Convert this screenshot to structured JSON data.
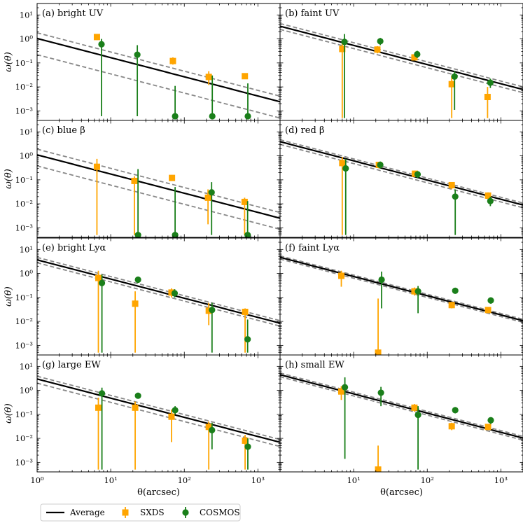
{
  "chart_data": {
    "type": "scatter",
    "x_scale": "log",
    "y_scale": "log",
    "xlim": [
      1,
      2000
    ],
    "ylim": [
      0.0004,
      30
    ],
    "xlabel": "θ(arcsec)",
    "ylabel": "ω(θ)",
    "x_ticks": [
      {
        "value": 1,
        "label": "10⁰"
      },
      {
        "value": 10,
        "label": "10¹"
      },
      {
        "value": 100,
        "label": "10²"
      },
      {
        "value": 1000,
        "label": "10³"
      }
    ],
    "y_ticks": [
      {
        "value": 0.001,
        "label": "10⁻³"
      },
      {
        "value": 0.01,
        "label": "10⁻²"
      },
      {
        "value": 0.1,
        "label": "10⁻¹"
      },
      {
        "value": 1,
        "label": "10⁰"
      },
      {
        "value": 10,
        "label": "10¹"
      }
    ],
    "legend": {
      "placement": "bottom",
      "entries": [
        {
          "key": "average",
          "label": "Average"
        },
        {
          "key": "sxds",
          "label": "SXDS"
        },
        {
          "key": "cosmos",
          "label": "COSMOS"
        }
      ]
    },
    "colors": {
      "average": "#000000",
      "bounds": "#888888",
      "sxds": "#FFA500",
      "cosmos": "#1A7F1A"
    },
    "panels": [
      {
        "title": "(a) bright UV",
        "average": {
          "amplitude": 1.05,
          "slope": 0.8
        },
        "bounds": [
          {
            "amplitude": 1.8,
            "slope": 0.8
          },
          {
            "amplitude": 0.22,
            "slope": 0.8
          }
        ],
        "sxds": [
          {
            "x": 6.5,
            "y": 1.2,
            "lo": 0.9,
            "hi": 1.6
          },
          {
            "x": 70,
            "y": 0.12,
            "lo": 0.085,
            "hi": 0.17
          },
          {
            "x": 215,
            "y": 0.026,
            "lo": 0.012,
            "hi": 0.045
          },
          {
            "x": 665,
            "y": 0.028,
            "lo": 0.022,
            "hi": 0.035
          }
        ],
        "cosmos": [
          {
            "x": 7.5,
            "y": 0.6,
            "lo": 0.0006,
            "hi": 1.0
          },
          {
            "x": 23,
            "y": 0.22,
            "lo": 0.0006,
            "hi": 0.55
          },
          {
            "x": 75,
            "y": 0.0006,
            "lo": 0.0006,
            "hi": 0.011
          },
          {
            "x": 240,
            "y": 0.0006,
            "lo": 0.0006,
            "hi": 0.03
          },
          {
            "x": 730,
            "y": 0.0006,
            "lo": 0.0006,
            "hi": 0.014
          }
        ]
      },
      {
        "title": "(b) faint UV",
        "average": {
          "amplitude": 3.4,
          "slope": 0.8
        },
        "bounds": [
          {
            "amplitude": 4.4,
            "slope": 0.8
          },
          {
            "amplitude": 2.5,
            "slope": 0.8
          }
        ],
        "sxds": [
          {
            "x": 7,
            "y": 0.38,
            "lo": 0.0005,
            "hi": 0.75
          },
          {
            "x": 21,
            "y": 0.36,
            "lo": 0.25,
            "hi": 0.5
          },
          {
            "x": 67,
            "y": 0.17,
            "lo": 0.13,
            "hi": 0.22
          },
          {
            "x": 215,
            "y": 0.013,
            "lo": 0.0005,
            "hi": 0.03
          },
          {
            "x": 660,
            "y": 0.0038,
            "lo": 0.0005,
            "hi": 0.01
          }
        ],
        "cosmos": [
          {
            "x": 7.5,
            "y": 0.75,
            "lo": 0.0005,
            "hi": 1.6
          },
          {
            "x": 23,
            "y": 0.8,
            "lo": 0.55,
            "hi": 1.1
          },
          {
            "x": 73,
            "y": 0.23,
            "lo": 0.16,
            "hi": 0.32
          },
          {
            "x": 235,
            "y": 0.027,
            "lo": 0.0011,
            "hi": 0.045
          },
          {
            "x": 720,
            "y": 0.015,
            "lo": 0.009,
            "hi": 0.022
          }
        ]
      },
      {
        "title": "(c) blue β",
        "average": {
          "amplitude": 1.1,
          "slope": 0.8
        },
        "bounds": [
          {
            "amplitude": 1.9,
            "slope": 0.8
          },
          {
            "amplitude": 0.38,
            "slope": 0.8
          }
        ],
        "sxds": [
          {
            "x": 6.5,
            "y": 0.35,
            "lo": 0.0005,
            "hi": 0.75
          },
          {
            "x": 21,
            "y": 0.09,
            "lo": 0.0005,
            "hi": 0.14
          },
          {
            "x": 68,
            "y": 0.12,
            "lo": 0.09,
            "hi": 0.16
          },
          {
            "x": 210,
            "y": 0.018,
            "lo": 0.0014,
            "hi": 0.04
          },
          {
            "x": 660,
            "y": 0.012,
            "lo": 0.0005,
            "hi": 0.018
          }
        ],
        "cosmos": [
          {
            "x": 23.5,
            "y": 0.0005,
            "lo": 0.0005,
            "hi": 0.28
          },
          {
            "x": 75,
            "y": 0.0005,
            "lo": 0.0005,
            "hi": 0.05
          },
          {
            "x": 235,
            "y": 0.03,
            "lo": 0.0005,
            "hi": 0.08
          },
          {
            "x": 725,
            "y": 0.0005,
            "lo": 0.0005,
            "hi": 0.013
          }
        ]
      },
      {
        "title": "(d) red β",
        "average": {
          "amplitude": 3.9,
          "slope": 0.8
        },
        "bounds": [
          {
            "amplitude": 4.7,
            "slope": 0.8
          },
          {
            "amplitude": 3.0,
            "slope": 0.8
          }
        ],
        "sxds": [
          {
            "x": 7,
            "y": 0.5,
            "lo": 0.0005,
            "hi": 0.9
          },
          {
            "x": 22,
            "y": 0.42,
            "lo": 0.3,
            "hi": 0.55
          },
          {
            "x": 68,
            "y": 0.18,
            "lo": 0.13,
            "hi": 0.24
          },
          {
            "x": 215,
            "y": 0.06,
            "lo": 0.04,
            "hi": 0.08
          },
          {
            "x": 670,
            "y": 0.022,
            "lo": 0.016,
            "hi": 0.03
          }
        ],
        "cosmos": [
          {
            "x": 7.8,
            "y": 0.3,
            "lo": 0.0005,
            "hi": 0.75
          },
          {
            "x": 23,
            "y": 0.42,
            "lo": 0.3,
            "hi": 0.58
          },
          {
            "x": 74,
            "y": 0.17,
            "lo": 0.12,
            "hi": 0.23
          },
          {
            "x": 240,
            "y": 0.02,
            "lo": 0.0005,
            "hi": 0.04
          },
          {
            "x": 720,
            "y": 0.013,
            "lo": 0.008,
            "hi": 0.02
          }
        ]
      },
      {
        "title": "(e) bright Lyα",
        "average": {
          "amplitude": 3.7,
          "slope": 0.8
        },
        "bounds": [
          {
            "amplitude": 4.7,
            "slope": 0.8
          },
          {
            "amplitude": 2.8,
            "slope": 0.8
          }
        ],
        "sxds": [
          {
            "x": 6.8,
            "y": 0.65,
            "lo": 0.0005,
            "hi": 1.3
          },
          {
            "x": 21.5,
            "y": 0.055,
            "lo": 0.0005,
            "hi": 0.18
          },
          {
            "x": 67,
            "y": 0.16,
            "lo": 0.1,
            "hi": 0.24
          },
          {
            "x": 215,
            "y": 0.028,
            "lo": 0.007,
            "hi": 0.06
          },
          {
            "x": 670,
            "y": 0.025,
            "lo": 0.0005,
            "hi": 0.035
          }
        ],
        "cosmos": [
          {
            "x": 7.6,
            "y": 0.4,
            "lo": 0.0005,
            "hi": 0.9
          },
          {
            "x": 23.5,
            "y": 0.55,
            "lo": 0.42,
            "hi": 0.7
          },
          {
            "x": 74,
            "y": 0.15,
            "lo": 0.1,
            "hi": 0.22
          },
          {
            "x": 238,
            "y": 0.03,
            "lo": 0.0005,
            "hi": 0.06
          },
          {
            "x": 725,
            "y": 0.0018,
            "lo": 0.0005,
            "hi": 0.012
          }
        ]
      },
      {
        "title": "(f) faint Lyα",
        "average": {
          "amplitude": 4.7,
          "slope": 0.8
        },
        "bounds": [
          {
            "amplitude": 5.4,
            "slope": 0.8
          },
          {
            "amplitude": 4.0,
            "slope": 0.8
          }
        ],
        "sxds": [
          {
            "x": 6.8,
            "y": 0.8,
            "lo": 0.28,
            "hi": 1.3
          },
          {
            "x": 21.5,
            "y": 0.0005,
            "lo": 0.0005,
            "hi": 0.09
          },
          {
            "x": 67,
            "y": 0.18,
            "lo": 0.12,
            "hi": 0.26
          },
          {
            "x": 215,
            "y": 0.048,
            "lo": 0.035,
            "hi": 0.065
          },
          {
            "x": 670,
            "y": 0.03,
            "lo": 0.022,
            "hi": 0.04
          }
        ],
        "cosmos": [
          {
            "x": 24,
            "y": 0.55,
            "lo": 0.035,
            "hi": 1.2
          },
          {
            "x": 75,
            "y": 0.18,
            "lo": 0.022,
            "hi": 0.3
          },
          {
            "x": 240,
            "y": 0.19,
            "lo": 0.15,
            "hi": 0.24
          },
          {
            "x": 730,
            "y": 0.075,
            "lo": 0.055,
            "hi": 0.095
          }
        ]
      },
      {
        "title": "(g) large EW",
        "average": {
          "amplitude": 3.0,
          "slope": 0.8
        },
        "bounds": [
          {
            "amplitude": 3.9,
            "slope": 0.8
          },
          {
            "amplitude": 2.0,
            "slope": 0.8
          }
        ],
        "sxds": [
          {
            "x": 6.8,
            "y": 0.19,
            "lo": 0.0005,
            "hi": 0.5
          },
          {
            "x": 21.5,
            "y": 0.19,
            "lo": 0.0005,
            "hi": 0.34
          },
          {
            "x": 67,
            "y": 0.08,
            "lo": 0.007,
            "hi": 0.16
          },
          {
            "x": 215,
            "y": 0.03,
            "lo": 0.0005,
            "hi": 0.05
          },
          {
            "x": 670,
            "y": 0.008,
            "lo": 0.0005,
            "hi": 0.014
          }
        ],
        "cosmos": [
          {
            "x": 7.6,
            "y": 0.75,
            "lo": 0.0005,
            "hi": 1.3
          },
          {
            "x": 23.5,
            "y": 0.6,
            "lo": 0.45,
            "hi": 0.75
          },
          {
            "x": 75,
            "y": 0.15,
            "lo": 0.1,
            "hi": 0.22
          },
          {
            "x": 238,
            "y": 0.022,
            "lo": 0.0035,
            "hi": 0.045
          },
          {
            "x": 730,
            "y": 0.0045,
            "lo": 0.0005,
            "hi": 0.01
          }
        ]
      },
      {
        "title": "(h) small EW",
        "average": {
          "amplitude": 4.5,
          "slope": 0.8
        },
        "bounds": [
          {
            "amplitude": 5.3,
            "slope": 0.8
          },
          {
            "amplitude": 3.7,
            "slope": 0.8
          }
        ],
        "sxds": [
          {
            "x": 6.8,
            "y": 0.9,
            "lo": 0.4,
            "hi": 1.5
          },
          {
            "x": 21.5,
            "y": 0.0005,
            "lo": 0.0005,
            "hi": 0.005
          },
          {
            "x": 67,
            "y": 0.19,
            "lo": 0.13,
            "hi": 0.27
          },
          {
            "x": 215,
            "y": 0.032,
            "lo": 0.022,
            "hi": 0.045
          },
          {
            "x": 670,
            "y": 0.03,
            "lo": 0.022,
            "hi": 0.04
          }
        ],
        "cosmos": [
          {
            "x": 7.6,
            "y": 1.35,
            "lo": 0.0014,
            "hi": 3.5
          },
          {
            "x": 23.5,
            "y": 0.8,
            "lo": 0.22,
            "hi": 1.4
          },
          {
            "x": 75,
            "y": 0.095,
            "lo": 0.0005,
            "hi": 0.22
          },
          {
            "x": 240,
            "y": 0.15,
            "lo": 0.11,
            "hi": 0.2
          },
          {
            "x": 730,
            "y": 0.057,
            "lo": 0.04,
            "hi": 0.075
          }
        ]
      }
    ]
  }
}
